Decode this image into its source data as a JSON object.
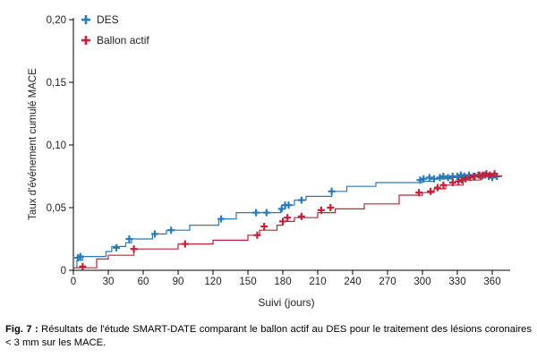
{
  "chart_data": {
    "type": "line",
    "step": true,
    "ylabel": "Taux d'événement cumulé MACE",
    "xlabel": "Suivi (jours)",
    "xlim": [
      0,
      372
    ],
    "ylim": [
      0,
      0.2
    ],
    "xticks": [
      0,
      30,
      60,
      90,
      120,
      150,
      180,
      210,
      240,
      270,
      300,
      330,
      360
    ],
    "xtick_labels": [
      "0",
      "30",
      "60",
      "90",
      "120",
      "150",
      "180",
      "210",
      "240",
      "270",
      "300",
      "330",
      "360"
    ],
    "yticks": [
      0,
      0.05,
      0.1,
      0.15,
      0.2
    ],
    "ytick_labels": [
      "0",
      "0,05",
      "0,10",
      "0,15",
      "0,20"
    ],
    "grid": false,
    "legend": "top-left",
    "series": [
      {
        "name": "DES",
        "color": "#2a7ab8",
        "steps": [
          [
            0,
            0.002
          ],
          [
            3,
            0.008
          ],
          [
            8,
            0.011
          ],
          [
            28,
            0.015
          ],
          [
            33,
            0.019
          ],
          [
            45,
            0.022
          ],
          [
            50,
            0.025
          ],
          [
            68,
            0.029
          ],
          [
            80,
            0.032
          ],
          [
            100,
            0.036
          ],
          [
            125,
            0.041
          ],
          [
            140,
            0.046
          ],
          [
            165,
            0.046
          ],
          [
            178,
            0.049
          ],
          [
            182,
            0.052
          ],
          [
            190,
            0.056
          ],
          [
            200,
            0.059
          ],
          [
            222,
            0.063
          ],
          [
            235,
            0.067
          ],
          [
            260,
            0.07
          ],
          [
            300,
            0.071
          ],
          [
            310,
            0.073
          ],
          [
            325,
            0.074
          ],
          [
            340,
            0.076
          ],
          [
            360,
            0.075
          ],
          [
            368,
            0.075
          ]
        ],
        "censor_x": [
          4,
          6,
          37,
          48,
          70,
          84,
          127,
          157,
          166,
          179,
          182,
          185,
          196,
          222,
          298,
          301,
          306,
          310,
          315,
          318,
          322,
          326,
          330,
          333,
          336,
          340,
          344,
          348,
          351,
          354,
          357,
          360,
          364
        ],
        "censor_y": [
          0.01,
          0.011,
          0.018,
          0.025,
          0.029,
          0.032,
          0.041,
          0.046,
          0.046,
          0.049,
          0.052,
          0.052,
          0.056,
          0.063,
          0.072,
          0.073,
          0.074,
          0.073,
          0.074,
          0.075,
          0.074,
          0.075,
          0.075,
          0.076,
          0.075,
          0.076,
          0.075,
          0.076,
          0.075,
          0.076,
          0.075,
          0.074,
          0.075
        ]
      },
      {
        "name": "Ballon actif",
        "color": "#c0223a",
        "steps": [
          [
            0,
            0.002
          ],
          [
            20,
            0.009
          ],
          [
            30,
            0.012
          ],
          [
            52,
            0.017
          ],
          [
            90,
            0.021
          ],
          [
            120,
            0.024
          ],
          [
            150,
            0.028
          ],
          [
            160,
            0.032
          ],
          [
            175,
            0.036
          ],
          [
            180,
            0.039
          ],
          [
            190,
            0.042
          ],
          [
            210,
            0.046
          ],
          [
            225,
            0.049
          ],
          [
            250,
            0.053
          ],
          [
            280,
            0.06
          ],
          [
            300,
            0.062
          ],
          [
            310,
            0.065
          ],
          [
            320,
            0.068
          ],
          [
            335,
            0.072
          ],
          [
            350,
            0.075
          ],
          [
            368,
            0.076
          ]
        ],
        "censor_x": [
          8,
          52,
          96,
          158,
          164,
          180,
          184,
          196,
          213,
          221,
          297,
          307,
          313,
          318,
          326,
          331,
          334,
          337,
          341,
          345,
          349,
          352,
          355,
          358,
          362
        ],
        "censor_y": [
          0.003,
          0.017,
          0.021,
          0.028,
          0.035,
          0.039,
          0.042,
          0.043,
          0.048,
          0.05,
          0.062,
          0.063,
          0.066,
          0.068,
          0.07,
          0.071,
          0.072,
          0.073,
          0.074,
          0.075,
          0.076,
          0.076,
          0.077,
          0.076,
          0.077
        ]
      }
    ]
  },
  "caption": {
    "label": "Fig. 7 :",
    "text": " Résultats de l'étude SMART-DATE comparant le ballon actif au DES pour le traitement des lésions coronaires < 3 mm sur les MACE."
  }
}
